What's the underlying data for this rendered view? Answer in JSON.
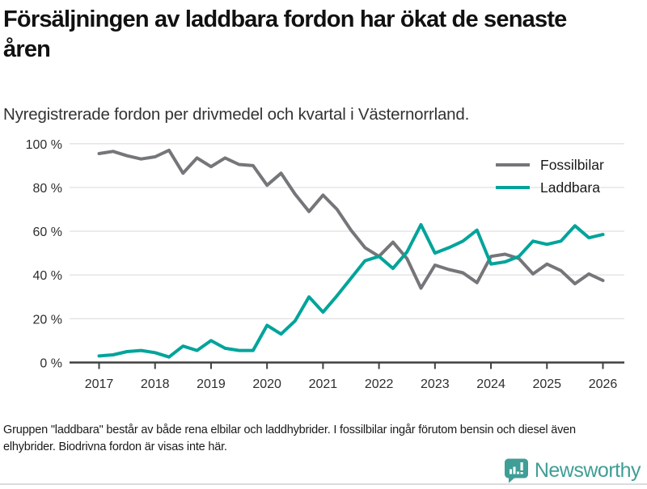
{
  "header": {
    "title": "Försäljningen av laddbara fordon har ökat de senaste åren",
    "subtitle": "Nyregistrerade fordon per drivmedel och kvartal i Västernorrland."
  },
  "chart_data": {
    "type": "line",
    "title": "Försäljningen av laddbara fordon har ökat de senaste åren",
    "subtitle": "Nyregistrerade fordon per drivmedel och kvartal i Västernorrland.",
    "unit": "%",
    "x_start": "2017 Q1",
    "x_end": "2026 Q1",
    "frequency": "quarterly",
    "xtick_labels": [
      "2017",
      "2018",
      "2019",
      "2020",
      "2021",
      "2022",
      "2023",
      "2024",
      "2025",
      "2026"
    ],
    "yticks": [
      0,
      20,
      40,
      60,
      80,
      100
    ],
    "ytick_labels": [
      "0 %",
      "20 %",
      "40 %",
      "60 %",
      "80 %",
      "100 %"
    ],
    "ylim": [
      0,
      100
    ],
    "grid": true,
    "legend_position": "right-top",
    "series": [
      {
        "name": "Fossilbilar",
        "color": "#75767a",
        "values": [
          95.5,
          96.5,
          94.5,
          93,
          94,
          97,
          86.5,
          93.5,
          89.5,
          93.5,
          90.5,
          90,
          81,
          86.5,
          77,
          69,
          76.5,
          70,
          60.5,
          52.5,
          48.5,
          55,
          47.5,
          34,
          44.5,
          42.5,
          41,
          36.5,
          48.5,
          49.5,
          47.5,
          40.5,
          45,
          42,
          36,
          40.5,
          37.5
        ]
      },
      {
        "name": "Laddbara",
        "color": "#00a49a",
        "values": [
          3,
          3.5,
          5,
          5.5,
          4.5,
          2.5,
          7.5,
          5.5,
          10,
          6.5,
          5.5,
          5.5,
          17,
          13,
          19,
          30,
          23,
          30.5,
          38.5,
          46.5,
          48.5,
          43,
          50.5,
          63,
          50,
          52.5,
          55.5,
          60.5,
          45,
          46,
          48.5,
          55.5,
          54,
          55.5,
          62.5,
          57,
          58.5
        ]
      }
    ]
  },
  "footer": {
    "note": "Gruppen \"laddbara\" består av både rena elbilar och laddhybrider. I fossilbilar ingår förutom bensin och diesel även elhybrider. Biodrivna fordon är visas inte här.",
    "brand": "Newsworthy"
  }
}
